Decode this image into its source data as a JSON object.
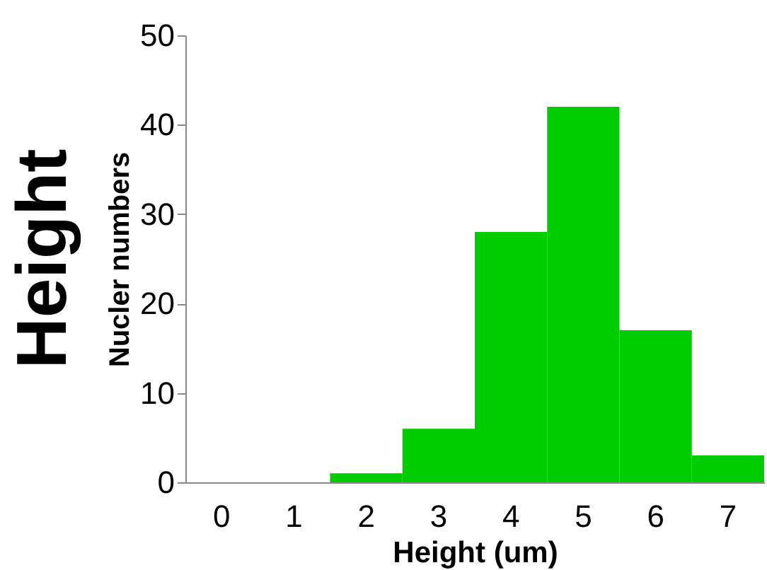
{
  "chart_data": {
    "type": "bar",
    "title": "Height",
    "xlabel": "Height (um)",
    "ylabel": "Nucler numbers",
    "categories": [
      "0",
      "1",
      "2",
      "3",
      "4",
      "5",
      "6",
      "7"
    ],
    "values": [
      0,
      0,
      1,
      6,
      28,
      42,
      17,
      3
    ],
    "color": "#00cc00",
    "ylim": [
      0,
      50
    ],
    "yticks": [
      0,
      10,
      20,
      30,
      40,
      50
    ],
    "grid": false
  }
}
